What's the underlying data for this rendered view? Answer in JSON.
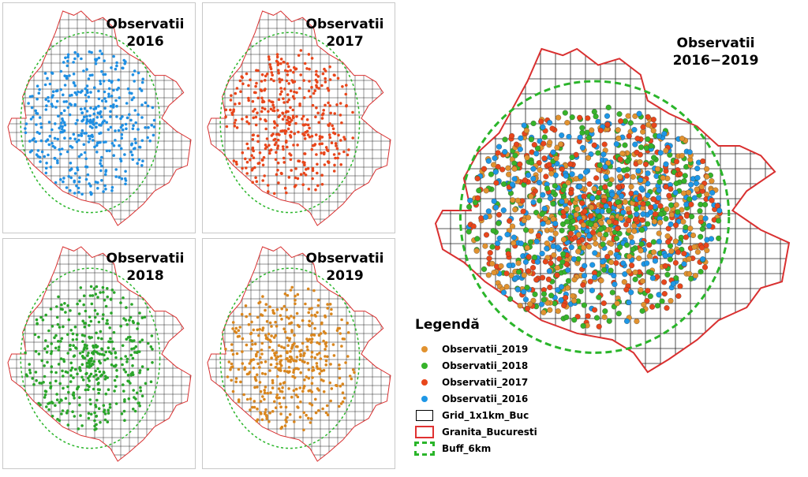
{
  "panels": [
    {
      "title_line1": "Observatii",
      "title_line2": "2016",
      "year": "2016",
      "color": "#1f8fe3"
    },
    {
      "title_line1": "Observatii",
      "title_line2": "2017",
      "year": "2017",
      "color": "#e8461b"
    },
    {
      "title_line1": "Observatii",
      "title_line2": "2018",
      "year": "2018",
      "color": "#2aa52a"
    },
    {
      "title_line1": "Observatii",
      "title_line2": "2019",
      "year": "2019",
      "color": "#d9861e"
    }
  ],
  "combined": {
    "title_line1": "Observatii",
    "title_line2": "2016−2019"
  },
  "legend": {
    "title": "Legendă",
    "items": [
      {
        "label": "Observatii_2019",
        "color": "#e1922f",
        "symbol": "dot"
      },
      {
        "label": "Observatii_2018",
        "color": "#36b32a",
        "symbol": "dot"
      },
      {
        "label": "Observatii_2017",
        "color": "#e8461b",
        "symbol": "dot"
      },
      {
        "label": "Observatii_2016",
        "color": "#1e97e6",
        "symbol": "dot"
      },
      {
        "label": "Grid_1x1km_Buc",
        "color": "#000000",
        "symbol": "grid"
      },
      {
        "label": "Granita_Bucuresti",
        "color": "#e03131",
        "symbol": "border"
      },
      {
        "label": "Buff_6km",
        "color": "#2ab52a",
        "symbol": "buffer"
      }
    ]
  }
}
